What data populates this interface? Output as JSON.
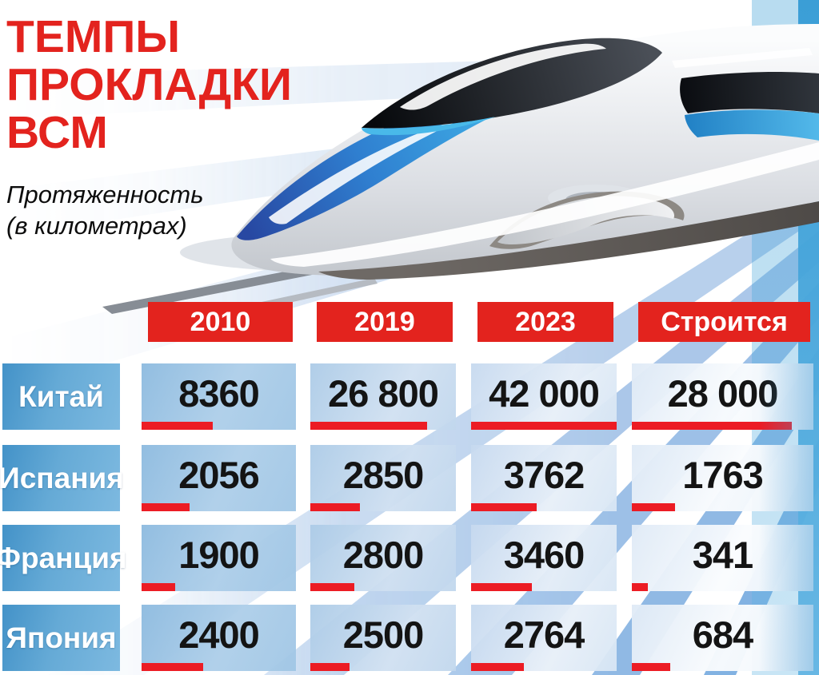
{
  "title_lines": [
    "ТЕМПЫ",
    "ПРОКЛАДКИ",
    "ВСМ"
  ],
  "subtitle_lines": [
    "Протяженность",
    "(в километрах)"
  ],
  "colors": {
    "accent_red": "#e3231e",
    "bar_red": "#ec1c24",
    "label_blue": "#4392c8",
    "train_blue": "#3fb2e8",
    "stripe_blue": "#9cc0e6"
  },
  "illustration": {
    "name": "high-speed-train",
    "elements": [
      "train-nose",
      "black-windshield",
      "blue-nose-stripe",
      "side-window",
      "motion-lines",
      "diagonal-speed-beams"
    ]
  },
  "chart_data": {
    "type": "table",
    "title": "ТЕМПЫ ПРОКЛАДКИ ВСМ",
    "subtitle": "Протяженность (в километрах)",
    "columns": [
      "2010",
      "2019",
      "2023",
      "Строится"
    ],
    "rows": [
      {
        "country": "Китай",
        "values": [
          "8360",
          "26 800",
          "42 000",
          "28 000"
        ],
        "bar_pct": [
          46,
          80,
          100,
          88
        ]
      },
      {
        "country": "Испания",
        "values": [
          "2056",
          "2850",
          "3762",
          "1763"
        ],
        "bar_pct": [
          31,
          34,
          45,
          24
        ]
      },
      {
        "country": "Франция",
        "values": [
          "1900",
          "2800",
          "3460",
          "341"
        ],
        "bar_pct": [
          22,
          30,
          42,
          9
        ]
      },
      {
        "country": "Япония",
        "values": [
          "2400",
          "2500",
          "2764",
          "684"
        ],
        "bar_pct": [
          40,
          27,
          36,
          21
        ]
      }
    ]
  }
}
